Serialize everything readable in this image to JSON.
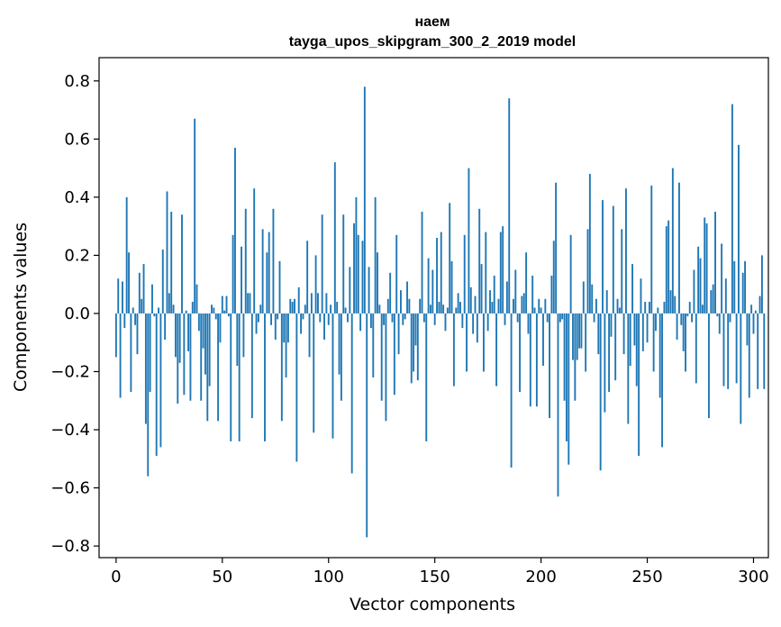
{
  "chart_data": {
    "type": "bar",
    "title": "наем",
    "subtitle": "tayga_upos_skipgram_300_2_2019 model",
    "xlabel": "Vector components",
    "ylabel": "Components values",
    "xlim": [
      -8,
      307
    ],
    "ylim": [
      -0.84,
      0.88
    ],
    "xticks": [
      0,
      50,
      100,
      150,
      200,
      250,
      300
    ],
    "yticks": [
      -0.8,
      -0.6,
      -0.4,
      -0.2,
      0.0,
      0.2,
      0.4,
      0.6,
      0.8
    ],
    "ytick_labels": [
      "−0.8",
      "−0.6",
      "−0.4",
      "−0.2",
      "0.0",
      "0.2",
      "0.4",
      "0.6",
      "0.8"
    ],
    "xtick_labels": [
      "0",
      "50",
      "100",
      "150",
      "200",
      "250",
      "300"
    ],
    "color": "#1f77b4",
    "grid": false,
    "values": [
      -0.15,
      0.12,
      -0.29,
      0.11,
      -0.05,
      0.4,
      0.21,
      -0.27,
      0.02,
      -0.04,
      -0.14,
      0.14,
      0.05,
      0.17,
      -0.38,
      -0.56,
      -0.27,
      0.1,
      -0.01,
      -0.49,
      0.02,
      -0.46,
      0.22,
      -0.09,
      0.42,
      0.07,
      0.35,
      0.03,
      -0.15,
      -0.31,
      -0.17,
      0.34,
      -0.28,
      0.01,
      -0.13,
      -0.3,
      0.04,
      0.67,
      0.1,
      -0.06,
      -0.3,
      -0.12,
      -0.21,
      -0.37,
      -0.25,
      0.03,
      0.02,
      -0.02,
      -0.37,
      -0.1,
      0.06,
      0.01,
      0.06,
      -0.01,
      -0.44,
      0.27,
      0.57,
      -0.18,
      -0.44,
      0.23,
      -0.15,
      0.36,
      0.07,
      0.07,
      -0.36,
      0.43,
      -0.07,
      -0.03,
      0.03,
      0.29,
      -0.44,
      0.21,
      0.28,
      -0.04,
      0.36,
      -0.09,
      -0.02,
      0.18,
      -0.37,
      -0.1,
      -0.22,
      -0.1,
      0.05,
      0.04,
      0.05,
      -0.51,
      0.09,
      -0.07,
      -0.02,
      0.03,
      0.25,
      -0.15,
      0.07,
      -0.41,
      0.2,
      0.07,
      -0.03,
      0.34,
      -0.09,
      0.07,
      -0.04,
      0.03,
      -0.43,
      0.52,
      0.04,
      -0.21,
      -0.3,
      0.34,
      0.02,
      -0.03,
      0.16,
      -0.55,
      0.31,
      0.4,
      0.27,
      -0.06,
      0.25,
      0.78,
      -0.77,
      0.16,
      -0.05,
      -0.22,
      0.4,
      0.21,
      0.03,
      -0.3,
      -0.04,
      -0.37,
      0.05,
      0.14,
      -0.03,
      -0.28,
      0.27,
      -0.14,
      0.08,
      -0.04,
      -0.02,
      0.11,
      0.05,
      -0.24,
      -0.2,
      -0.11,
      -0.23,
      0.05,
      0.35,
      -0.03,
      -0.44,
      0.19,
      0.03,
      0.15,
      -0.04,
      0.26,
      0.04,
      0.28,
      0.03,
      -0.06,
      0.02,
      0.38,
      0.18,
      -0.25,
      0.02,
      0.07,
      0.04,
      -0.05,
      0.27,
      -0.2,
      0.5,
      0.09,
      -0.07,
      0.06,
      -0.1,
      0.36,
      0.17,
      -0.2,
      0.28,
      -0.06,
      0.08,
      0.04,
      0.13,
      -0.25,
      0.05,
      0.28,
      0.3,
      -0.04,
      0.11,
      0.74,
      -0.53,
      0.05,
      0.15,
      -0.03,
      -0.27,
      0.06,
      0.07,
      0.21,
      -0.07,
      -0.32,
      0.13,
      0.02,
      -0.32,
      0.05,
      0.02,
      -0.18,
      0.05,
      -0.03,
      -0.36,
      0.13,
      0.25,
      0.45,
      -0.63,
      -0.03,
      -0.02,
      -0.3,
      -0.44,
      -0.52,
      0.27,
      -0.16,
      -0.3,
      -0.16,
      -0.12,
      -0.12,
      0.11,
      -0.2,
      0.29,
      0.48,
      0.1,
      -0.03,
      0.05,
      -0.14,
      -0.54,
      0.39,
      -0.34,
      0.08,
      -0.27,
      -0.08,
      0.37,
      -0.23,
      0.05,
      0.02,
      0.29,
      -0.14,
      0.43,
      -0.38,
      -0.18,
      0.17,
      -0.11,
      -0.25,
      -0.49,
      0.12,
      -0.13,
      0.04,
      -0.1,
      0.04,
      0.44,
      -0.2,
      -0.06,
      0.02,
      -0.29,
      -0.46,
      0.04,
      0.3,
      0.32,
      0.08,
      0.5,
      0.06,
      -0.09,
      0.45,
      -0.04,
      -0.13,
      -0.2,
      -0.01,
      0.04,
      -0.03,
      0.15,
      -0.24,
      0.23,
      0.19,
      0.03,
      0.33,
      0.31,
      -0.36,
      0.08,
      0.1,
      0.35,
      -0.01,
      -0.07,
      0.24,
      -0.25,
      0.12,
      -0.26,
      -0.03,
      0.72,
      0.18,
      -0.24,
      0.58,
      -0.38,
      0.14,
      0.18,
      -0.11,
      -0.29,
      0.03,
      -0.07,
      0.01,
      -0.26,
      0.06,
      0.2,
      -0.26
    ]
  }
}
